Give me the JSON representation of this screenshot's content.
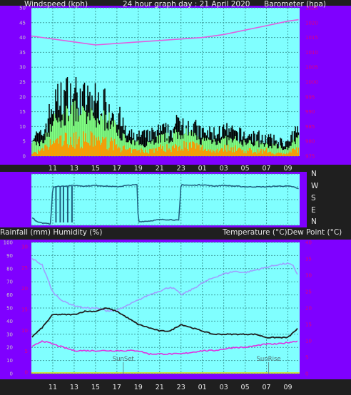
{
  "header": {
    "left": "Windspeed (kph)",
    "center": "24 hour graph day : 21 April 2020",
    "right": "Barometer (hpa)"
  },
  "lower_header": {
    "left": "Rainfall (mm)  Humidity (%)",
    "right": "Temperature (°C)Dew Point (°C)"
  },
  "compass": [
    "N",
    "W",
    "S",
    "E",
    "N"
  ],
  "events": {
    "sunset": "SunSet",
    "sunrise": "SunRise"
  },
  "colors": {
    "frame": "#7f00ff",
    "plot_bg": "#80ffff",
    "grid": "#3f9f9f",
    "wind_gust": "#000000",
    "wind_avg": "#80ff80",
    "wind_min": "#ff9900",
    "pressure": "#e060e0",
    "direction": "#1f5f7f",
    "humidity": "#9f9fff",
    "temperature": "#1f1f1f",
    "dewpoint": "#e030e0",
    "right_axis": "#e0007f"
  },
  "chart_data": [
    {
      "type": "line",
      "title": "24 hour graph day : 21 April 2020",
      "x_ticks": [
        "11",
        "13",
        "15",
        "17",
        "19",
        "21",
        "23",
        "01",
        "03",
        "05",
        "07",
        "09"
      ],
      "y_left_label": "Windspeed (kph)",
      "y_left_ticks": [
        "0",
        "5",
        "10",
        "15",
        "20",
        "25",
        "30",
        "35",
        "40",
        "45",
        "50"
      ],
      "ylim_left": [
        0,
        50
      ],
      "y_right_label": "Barometer (hpa)",
      "y_right_ticks": [
        "975",
        "980",
        "985",
        "990",
        "995",
        "1000",
        "1005",
        "1010",
        "1015",
        "1020",
        "1025"
      ],
      "ylim_right": [
        975,
        1025
      ],
      "grid": true,
      "series": [
        {
          "name": "Windspeed (kph)",
          "axis": "left",
          "hours": [
            9,
            10,
            11,
            12,
            13,
            14,
            15,
            16,
            17,
            18,
            19,
            20,
            21,
            22,
            23,
            24,
            25,
            26,
            27,
            28,
            29,
            30,
            31,
            32,
            33,
            34
          ],
          "gust": [
            8,
            8,
            20,
            24,
            25,
            22,
            22,
            20,
            17,
            8,
            8,
            8,
            10,
            10,
            14,
            12,
            9,
            9,
            10,
            9,
            8,
            8,
            7,
            6,
            5,
            11
          ],
          "avg": [
            5,
            5,
            13,
            15,
            17,
            15,
            14,
            14,
            11,
            5,
            5,
            5,
            7,
            7,
            9,
            8,
            6,
            6,
            6,
            6,
            5,
            5,
            4,
            4,
            3,
            7
          ],
          "low": [
            1,
            2,
            5,
            6,
            6,
            6,
            6,
            5,
            4,
            2,
            2,
            2,
            3,
            3,
            4,
            4,
            3,
            2,
            3,
            3,
            2,
            2,
            2,
            1,
            1,
            3
          ]
        },
        {
          "name": "Barometer (hpa)",
          "axis": "right",
          "hours": [
            9,
            11,
            13,
            15,
            17,
            19,
            21,
            23,
            25,
            27,
            29,
            31,
            33,
            34
          ],
          "values": [
            1015.5,
            1014.5,
            1013.5,
            1012.5,
            1013.0,
            1013.5,
            1014.0,
            1014.5,
            1015.0,
            1016.0,
            1017.5,
            1019.0,
            1020.5,
            1021.0
          ]
        }
      ]
    },
    {
      "type": "line",
      "title": "",
      "x_ticks": [],
      "y_right_label": "",
      "y_ticks": [
        "N",
        "W",
        "S",
        "E",
        "N"
      ],
      "ylim": [
        0,
        360
      ],
      "grid": true,
      "series": [
        {
          "name": "Wind direction",
          "hours": [
            9,
            9.5,
            10,
            10.5,
            10.8,
            11,
            12,
            13,
            14,
            15,
            16,
            17,
            18,
            18.9,
            19,
            20,
            21,
            22,
            22.8,
            23,
            24,
            25,
            26,
            27,
            28,
            29,
            30,
            31,
            32,
            33,
            33.5,
            34
          ],
          "values": [
            60,
            25,
            15,
            15,
            10,
            270,
            275,
            280,
            275,
            280,
            275,
            270,
            280,
            285,
            25,
            30,
            40,
            40,
            35,
            285,
            280,
            285,
            275,
            280,
            275,
            270,
            270,
            270,
            275,
            275,
            270,
            255
          ]
        }
      ]
    },
    {
      "type": "line",
      "title": "",
      "x_ticks": [
        "11",
        "13",
        "15",
        "17",
        "19",
        "21",
        "23",
        "01",
        "03",
        "05",
        "07",
        "09"
      ],
      "y_left_label": "Rainfall (mm)  Humidity (%)",
      "y_left_ticks": [
        "0",
        "10",
        "20",
        "30",
        "40",
        "50",
        "60",
        "70",
        "80",
        "90",
        "100"
      ],
      "ylim_left": [
        0,
        100
      ],
      "y_rain_ticks": [
        "0",
        "5",
        "10",
        "15",
        "20",
        "25",
        "30"
      ],
      "y_right_label": "Temperature (°C)Dew Point (°C)",
      "y_right_ticks": [
        "0",
        "5",
        "10",
        "15",
        "20",
        "25",
        "30",
        "35",
        "40"
      ],
      "ylim_right": [
        0,
        40
      ],
      "grid": true,
      "annotations": [
        {
          "text": "SunSet",
          "hour": 17.6
        },
        {
          "text": "SunRise",
          "hour": 31.2
        }
      ],
      "series": [
        {
          "name": "Humidity (%)",
          "axis": "left",
          "hours": [
            9,
            10,
            11,
            12,
            13,
            14,
            15,
            16,
            17,
            18,
            19,
            20,
            21,
            22,
            22.5,
            23,
            24,
            25,
            26,
            27,
            28,
            29,
            30,
            31,
            32,
            33,
            33.5,
            34
          ],
          "values": [
            88,
            83,
            62,
            55,
            52,
            50,
            50,
            48,
            48,
            52,
            56,
            60,
            63,
            66,
            64,
            60,
            64,
            69,
            73,
            76,
            78,
            77,
            79,
            81,
            83,
            84,
            82,
            74
          ]
        },
        {
          "name": "Temperature (°C)",
          "axis": "right",
          "hours": [
            9,
            10,
            11,
            12,
            13,
            14,
            15,
            16,
            17,
            18,
            19,
            20,
            21,
            22,
            23,
            24,
            25,
            26,
            27,
            28,
            29,
            30,
            31,
            32,
            33,
            34
          ],
          "values": [
            11,
            14,
            18,
            18,
            18,
            19,
            19,
            20,
            19,
            17,
            15,
            14,
            13,
            13,
            15,
            14,
            13,
            12,
            12,
            12,
            12,
            12,
            11,
            11,
            11,
            14
          ]
        },
        {
          "name": "Dew Point (°C)",
          "axis": "right",
          "hours": [
            9,
            10,
            11,
            12,
            13,
            14,
            15,
            16,
            17,
            18,
            19,
            20,
            21,
            22,
            23,
            24,
            25,
            26,
            27,
            28,
            29,
            30,
            31,
            32,
            33,
            34
          ],
          "values": [
            8,
            10,
            9,
            8,
            7,
            7,
            7,
            7,
            7,
            7,
            7,
            6,
            6,
            6,
            6,
            6.5,
            7,
            7,
            7.5,
            8,
            8,
            8.5,
            9,
            9,
            9.5,
            10
          ]
        }
      ]
    }
  ]
}
